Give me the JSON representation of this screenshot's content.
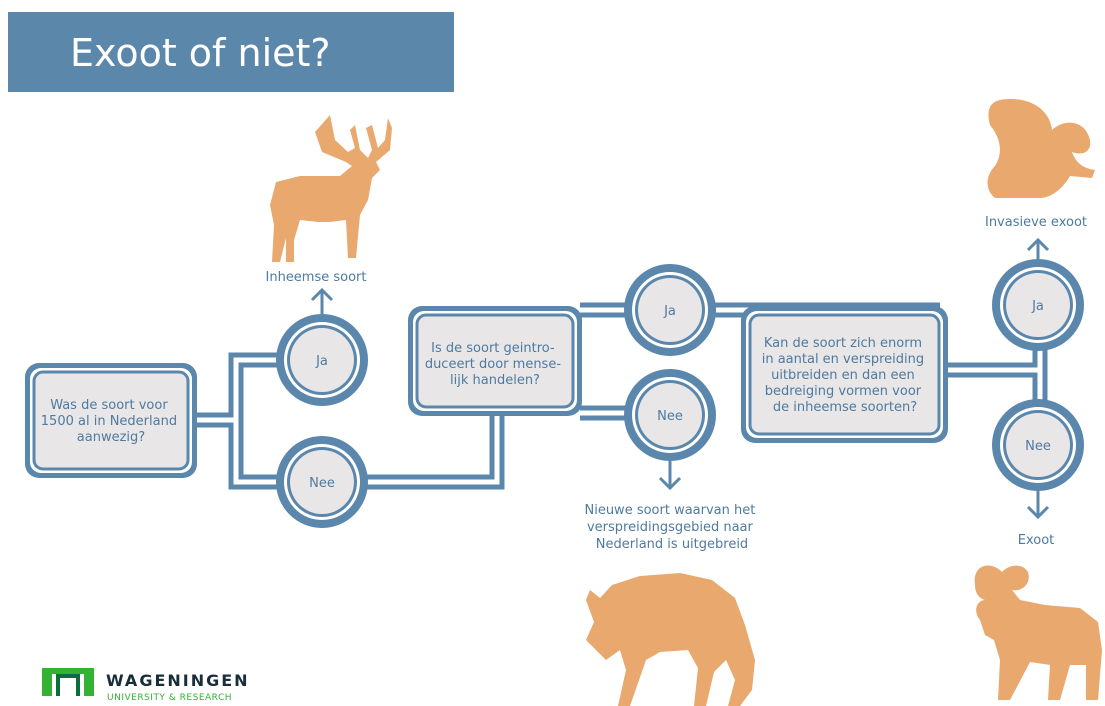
{
  "header": {
    "title": "Exoot of niet?"
  },
  "questions": [
    {
      "lines": [
        "Was de soort voor",
        "1500 al in Nederland",
        "aanwezig?"
      ],
      "yes": "Ja",
      "no": "Nee"
    },
    {
      "lines": [
        "Is de soort geintro-",
        "duceert door mense-",
        "lijk handelen?"
      ],
      "yes": "Ja",
      "no": "Nee"
    },
    {
      "lines": [
        "Kan de soort zich enorm",
        "in aantal en verspreiding",
        "uitbreiden en dan een",
        "bedreiging vormen voor",
        "de inheemse soorten?"
      ],
      "yes": "Ja",
      "no": "Nee"
    }
  ],
  "outcomes": [
    {
      "lines": [
        "Inheemse soort"
      ]
    },
    {
      "lines": [
        "Nieuwe soort waarvan het",
        "verspreidingsgebied naar",
        "Nederland is uitgebreid"
      ]
    },
    {
      "lines": [
        "Invasieve exoot"
      ]
    },
    {
      "lines": [
        "Exoot"
      ]
    }
  ],
  "logo": {
    "name": "WAGENINGEN",
    "subtitle": "UNIVERSITY & RESEARCH"
  }
}
